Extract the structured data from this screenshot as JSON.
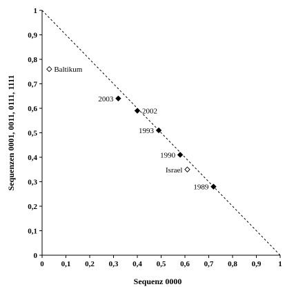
{
  "chart_data": {
    "type": "scatter",
    "title": "",
    "xlabel": "Sequenz 0000",
    "ylabel": "Sequenzen 0001, 0011, 0111, 1111",
    "xlim": [
      0,
      1
    ],
    "ylim": [
      0,
      1
    ],
    "x_ticks": [
      "0",
      "0,1",
      "0,2",
      "0,3",
      "0,4",
      "0,5",
      "0,6",
      "0,7",
      "0,8",
      "0,9",
      "1"
    ],
    "y_ticks": [
      "0",
      "0,1",
      "0,2",
      "0,3",
      "0,4",
      "0,5",
      "0,6",
      "0,7",
      "0,8",
      "0,9",
      "1"
    ],
    "grid": false,
    "reference_line": {
      "style": "dashed",
      "from": [
        0,
        1
      ],
      "to": [
        1,
        0
      ]
    },
    "points": [
      {
        "label": "Baltikum",
        "x": 0.03,
        "y": 0.76,
        "marker": "open-diamond",
        "label_side": "right"
      },
      {
        "label": "2003",
        "x": 0.32,
        "y": 0.64,
        "marker": "filled-diamond",
        "label_side": "left"
      },
      {
        "label": "2002",
        "x": 0.4,
        "y": 0.59,
        "marker": "filled-diamond",
        "label_side": "right"
      },
      {
        "label": "1993",
        "x": 0.49,
        "y": 0.51,
        "marker": "filled-diamond",
        "label_side": "left"
      },
      {
        "label": "1990",
        "x": 0.58,
        "y": 0.41,
        "marker": "filled-diamond",
        "label_side": "left"
      },
      {
        "label": "Israel",
        "x": 0.61,
        "y": 0.35,
        "marker": "open-diamond",
        "label_side": "left"
      },
      {
        "label": "1989",
        "x": 0.72,
        "y": 0.28,
        "marker": "filled-diamond",
        "label_side": "left"
      }
    ]
  }
}
